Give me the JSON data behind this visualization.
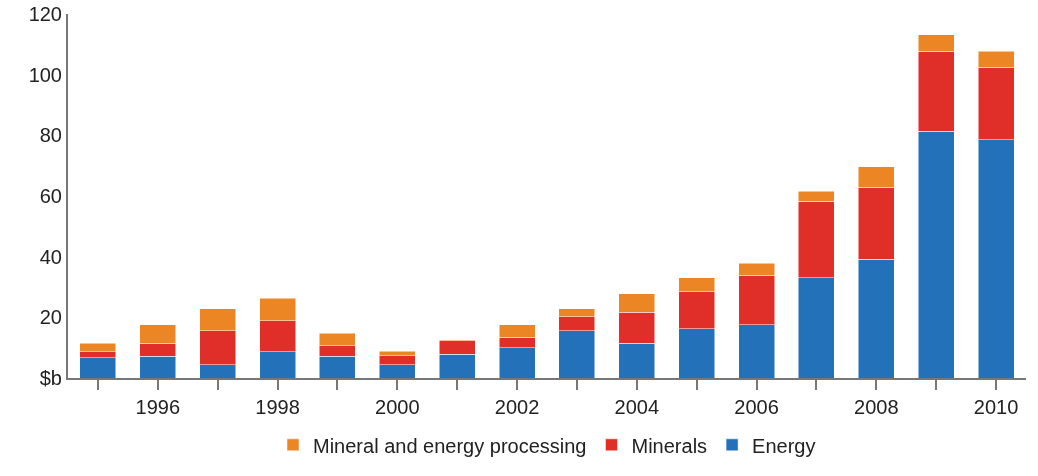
{
  "chart_data": {
    "type": "bar",
    "stacked": true,
    "categories": [
      null,
      "1996",
      null,
      "1998",
      null,
      "2000",
      null,
      "2002",
      null,
      "2004",
      null,
      "2006",
      null,
      "2008",
      null,
      "2010"
    ],
    "series": [
      {
        "name": "Energy",
        "color": "#2271b9",
        "values": [
          6.7,
          7.2,
          4.4,
          8.6,
          7.2,
          4.4,
          7.9,
          9.9,
          15.5,
          11.4,
          16.2,
          17.5,
          33.1,
          39.2,
          81.4,
          78.6
        ]
      },
      {
        "name": "Minerals",
        "color": "#e02e29",
        "values": [
          2.0,
          4.2,
          11.1,
          10.3,
          3.5,
          3.0,
          4.3,
          3.6,
          4.7,
          10.2,
          12.2,
          16.3,
          25.1,
          23.7,
          26.4,
          23.8
        ]
      },
      {
        "name": "Mineral and energy processing",
        "color": "#ec8523",
        "values": [
          2.7,
          6.1,
          7.4,
          7.4,
          4.1,
          1.4,
          0.4,
          4.0,
          2.7,
          6.1,
          4.7,
          4.1,
          3.4,
          6.8,
          5.4,
          5.4
        ]
      }
    ],
    "ylim": [
      0,
      120
    ],
    "yticks": [
      {
        "value": 0,
        "label": "$b"
      },
      20,
      40,
      60,
      80,
      100,
      120
    ],
    "grid": false,
    "legend": "bottom"
  }
}
